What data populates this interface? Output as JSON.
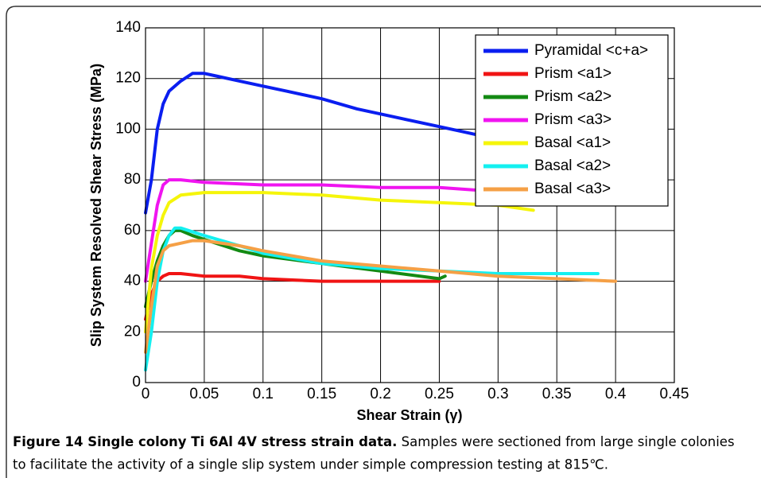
{
  "chart_data": {
    "type": "line",
    "xlabel": "Shear Strain (γ)",
    "ylabel": "Slip System Resolved Shear Stress (MPa)",
    "caption_title": "Figure 14 Single colony Ti 6Al 4V stress strain data.",
    "caption_text": "Samples were sectioned from large single colonies to facilitate the activity of a single slip system under simple compression testing at 815℃.",
    "xlim": [
      0,
      0.45
    ],
    "xticks": [
      0,
      0.05,
      0.1,
      0.15,
      0.2,
      0.25,
      0.3,
      0.35,
      0.4,
      0.45
    ],
    "ylim": [
      0,
      140
    ],
    "yticks": [
      0,
      20,
      40,
      60,
      80,
      100,
      120,
      140
    ],
    "grid": true,
    "legend": "upper right",
    "series": [
      {
        "name": "Pyramidal <c+a>",
        "color": "#0a1ef0",
        "x": [
          0,
          0.005,
          0.01,
          0.015,
          0.02,
          0.03,
          0.04,
          0.05,
          0.06,
          0.08,
          0.1,
          0.12,
          0.15,
          0.18,
          0.2,
          0.22,
          0.25,
          0.27,
          0.28,
          0.29
        ],
        "values": [
          67,
          80,
          100,
          110,
          115,
          119,
          122,
          122,
          121,
          119,
          117,
          115,
          112,
          108,
          106,
          104,
          101,
          99,
          98,
          97
        ]
      },
      {
        "name": "Prism <a1>",
        "color": "#f01414",
        "x": [
          0,
          0.005,
          0.01,
          0.015,
          0.02,
          0.03,
          0.05,
          0.08,
          0.1,
          0.15,
          0.2,
          0.25
        ],
        "values": [
          25,
          35,
          40,
          42,
          43,
          43,
          42,
          42,
          41,
          40,
          40,
          40
        ]
      },
      {
        "name": "Prism <a2>",
        "color": "#138a13",
        "x": [
          0,
          0.005,
          0.01,
          0.015,
          0.02,
          0.025,
          0.03,
          0.04,
          0.06,
          0.08,
          0.1,
          0.15,
          0.2,
          0.25,
          0.255
        ],
        "values": [
          30,
          40,
          48,
          54,
          58,
          60,
          60,
          58,
          55,
          52,
          50,
          47,
          44,
          41,
          42
        ]
      },
      {
        "name": "Prism <a3>",
        "color": "#f014f0",
        "x": [
          0,
          0.005,
          0.01,
          0.015,
          0.02,
          0.03,
          0.05,
          0.1,
          0.15,
          0.2,
          0.25,
          0.28
        ],
        "values": [
          40,
          55,
          70,
          78,
          80,
          80,
          79,
          78,
          78,
          77,
          77,
          76
        ]
      },
      {
        "name": "Basal <a1>",
        "color": "#f5f50a",
        "x": [
          0,
          0.005,
          0.01,
          0.015,
          0.02,
          0.03,
          0.05,
          0.07,
          0.1,
          0.15,
          0.2,
          0.25,
          0.3,
          0.33
        ],
        "values": [
          20,
          45,
          58,
          66,
          71,
          74,
          75,
          75,
          75,
          74,
          72,
          71,
          70,
          68
        ]
      },
      {
        "name": "Basal <a2>",
        "color": "#14f0f0",
        "x": [
          0,
          0.005,
          0.01,
          0.015,
          0.02,
          0.025,
          0.03,
          0.05,
          0.08,
          0.1,
          0.15,
          0.2,
          0.25,
          0.3,
          0.35,
          0.385
        ],
        "values": [
          5,
          20,
          40,
          52,
          58,
          61,
          61,
          58,
          54,
          51,
          47,
          45,
          44,
          43,
          43,
          43
        ]
      },
      {
        "name": "Basal <a3>",
        "color": "#f5a046",
        "x": [
          0,
          0.005,
          0.01,
          0.015,
          0.02,
          0.03,
          0.04,
          0.05,
          0.08,
          0.1,
          0.15,
          0.2,
          0.25,
          0.3,
          0.35,
          0.4
        ],
        "values": [
          12,
          30,
          46,
          52,
          54,
          55,
          56,
          56,
          54,
          52,
          48,
          46,
          44,
          42,
          41,
          40
        ]
      }
    ]
  }
}
